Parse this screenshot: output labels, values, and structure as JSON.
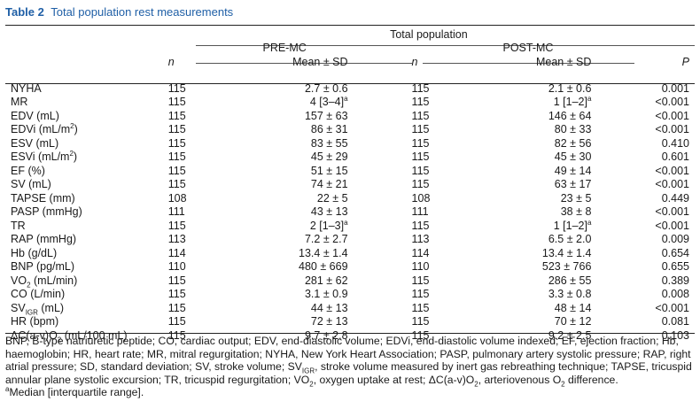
{
  "title": {
    "number": "Table 2",
    "text": "Total population rest measurements"
  },
  "header": {
    "group": "Total population",
    "pre": "PRE-MC",
    "post": "POST-MC",
    "n": "n",
    "mean": "Mean ± SD",
    "p": "P"
  },
  "rows": [
    {
      "label": "NYHA",
      "n1": "115",
      "m1": "2.7 ± 0.6",
      "n2": "115",
      "m2": "2.1 ± 0.6",
      "p": "0.001"
    },
    {
      "label": "MR",
      "n1": "115",
      "m1": "4 [3–4]",
      "n2": "115",
      "m2": "1 [1–2]",
      "p": "<0.001"
    },
    {
      "label": "EDV (mL)",
      "n1": "115",
      "m1": "157 ± 63",
      "n2": "115",
      "m2": "146 ± 64",
      "p": "<0.001"
    },
    {
      "label": "EDVi (mL/m",
      "n1": "115",
      "m1": "86 ± 31",
      "n2": "115",
      "m2": "80 ± 33",
      "p": "<0.001"
    },
    {
      "label": "ESV (mL)",
      "n1": "115",
      "m1": "83 ± 55",
      "n2": "115",
      "m2": "82 ± 56",
      "p": "0.410"
    },
    {
      "label": "ESVi (mL/m",
      "n1": "115",
      "m1": "45 ± 29",
      "n2": "115",
      "m2": "45 ± 30",
      "p": "0.601"
    },
    {
      "label": "EF (%)",
      "n1": "115",
      "m1": "51 ± 15",
      "n2": "115",
      "m2": "49 ± 14",
      "p": "<0.001"
    },
    {
      "label": "SV (mL)",
      "n1": "115",
      "m1": "74 ± 21",
      "n2": "115",
      "m2": "63 ± 17",
      "p": "<0.001"
    },
    {
      "label": "TAPSE (mm)",
      "n1": "108",
      "m1": "22 ± 5",
      "n2": "108",
      "m2": "23 ± 5",
      "p": "0.449"
    },
    {
      "label": "PASP (mmHg)",
      "n1": "111",
      "m1": "43 ± 13",
      "n2": "111",
      "m2": "38 ± 8",
      "p": "<0.001"
    },
    {
      "label": "TR",
      "n1": "115",
      "m1": "2 [1–3]",
      "n2": "115",
      "m2": "1 [1–2]",
      "p": "<0.001"
    },
    {
      "label": "RAP (mmHg)",
      "n1": "113",
      "m1": "7.2 ± 2.7",
      "n2": "113",
      "m2": "6.5 ± 2.0",
      "p": "0.009"
    },
    {
      "label": "Hb (g/dL)",
      "n1": "114",
      "m1": "13.4 ± 1.4",
      "n2": "114",
      "m2": "13.4 ± 1.4",
      "p": "0.654"
    },
    {
      "label": "BNP (pg/mL)",
      "n1": "110",
      "m1": "480 ± 669",
      "n2": "110",
      "m2": "523 ± 766",
      "p": "0.655"
    },
    {
      "label": "VO",
      "n1": "115",
      "m1": "281 ± 62",
      "n2": "115",
      "m2": "286 ± 55",
      "p": "0.389"
    },
    {
      "label": "CO (L/min)",
      "n1": "115",
      "m1": "3.1 ± 0.9",
      "n2": "115",
      "m2": "3.3 ± 0.8",
      "p": "0.008"
    },
    {
      "label": "SV",
      "n1": "115",
      "m1": "44 ± 13",
      "n2": "115",
      "m2": "48 ± 14",
      "p": "<0.001"
    },
    {
      "label": "HR (bpm)",
      "n1": "115",
      "m1": "72 ± 13",
      "n2": "115",
      "m2": "70 ± 12",
      "p": "0.081"
    },
    {
      "label": "ΔC(a-v)O",
      "n1": "115",
      "m1": "9.7 ± 2.8",
      "n2": "115",
      "m2": "9.2 ± 2.5",
      "p": "0.103"
    }
  ],
  "label_parts": {
    "sup_2": "2",
    "close_paren": ")",
    "sub_2": "2",
    "vo2_unit": " (mL/min)",
    "sub_igr": "IGR",
    "svigr_unit": " (mL)",
    "dc_unit": " (mL/100 mL)",
    "sup_a": "a"
  },
  "footnote": {
    "p1": "BNP, B-type natriuretic peptide; CO, cardiac output; EDV, end-diastolic volume; EDVi, end-diastolic volume indexed; EF, ejection fraction; Hb, haemoglobin; HR, heart rate; MR, mitral regurgitation; NYHA, New York Heart Association; PASP, pulmonary artery systolic pressure; RAP, right atrial pressure; SD, standard deviation; SV, stroke volume; SV",
    "p1_sub_igr": "IGR",
    "p1b": ", stroke volume measured by inert gas rebreathing technique; TAPSE, tricuspid annular plane systolic excursion; TR, tricuspid regurgitation; VO",
    "p1_sub_2a": "2",
    "p1c": ", oxygen uptake at rest; ΔC(a-v)O",
    "p1_sub_2b": "2",
    "p1d": ", arteriovenous O",
    "p1_sub_2c": "2",
    "p1e": " difference.",
    "p2_sup": "a",
    "p2": "Median [interquartile range]."
  }
}
